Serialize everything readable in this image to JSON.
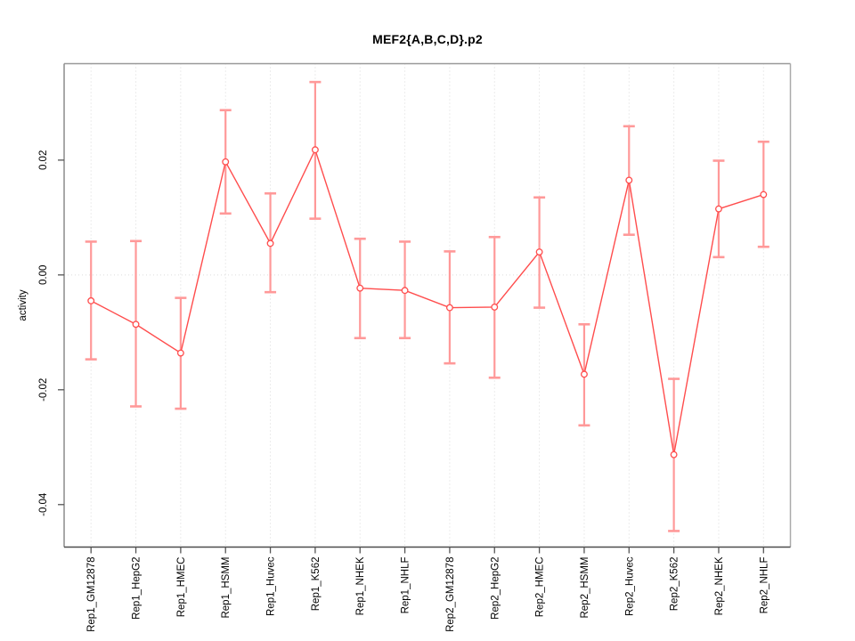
{
  "chart_data": {
    "type": "line",
    "title": "MEF2{A,B,C,D}.p2",
    "xlabel": "",
    "ylabel": "activity",
    "legend_position": "none",
    "categories": [
      "Rep1_GM12878",
      "Rep1_HepG2",
      "Rep1_HMEC",
      "Rep1_HSMM",
      "Rep1_Huvec",
      "Rep1_K562",
      "Rep1_NHEK",
      "Rep1_NHLF",
      "Rep2_GM12878",
      "Rep2_HepG2",
      "Rep2_HMEC",
      "Rep2_HSMM",
      "Rep2_Huvec",
      "Rep2_K562",
      "Rep2_NHEK",
      "Rep2_NHLF"
    ],
    "values": [
      -0.0045,
      -0.0086,
      -0.0136,
      0.0197,
      0.0055,
      0.0218,
      -0.0023,
      -0.0027,
      -0.0057,
      -0.0056,
      0.004,
      -0.0173,
      0.0165,
      -0.0313,
      0.0115,
      0.014
    ],
    "error_high": [
      0.0058,
      0.0059,
      -0.004,
      0.0287,
      0.0142,
      0.0336,
      0.0063,
      0.0058,
      0.0041,
      0.0066,
      0.0135,
      -0.0086,
      0.0259,
      -0.0181,
      0.0199,
      0.0232
    ],
    "error_low": [
      -0.0147,
      -0.0229,
      -0.0233,
      0.0107,
      -0.003,
      0.0098,
      -0.011,
      -0.011,
      -0.0154,
      -0.0179,
      -0.0057,
      -0.0262,
      0.007,
      -0.0446,
      0.0031,
      0.0049
    ],
    "yticks": [
      "0.02",
      "0.00",
      "-0.02",
      "-0.04"
    ],
    "ylim": [
      -0.0474,
      0.0368
    ],
    "grid": {
      "vertical_dotted": true,
      "horizontal_zero_dotted": true
    },
    "colors": {
      "series": "#ff4d4d",
      "error_bar": "#ff9999",
      "point_fill": "#ffffff",
      "grid": "#d9d9d9",
      "zero_line": "#dcdcdc",
      "box_top": "#999999",
      "box_right": "#aaaaaa",
      "box_left": "#8c8c8c",
      "box_bottom": "#4d4d4d",
      "tick": "#555555",
      "text": "#000000"
    }
  }
}
